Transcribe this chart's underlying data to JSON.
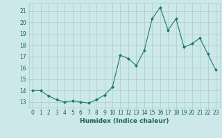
{
  "x": [
    0,
    1,
    2,
    3,
    4,
    5,
    6,
    7,
    8,
    9,
    10,
    11,
    12,
    13,
    14,
    15,
    16,
    17,
    18,
    19,
    20,
    21,
    22,
    23
  ],
  "y": [
    14.0,
    14.0,
    13.5,
    13.2,
    13.0,
    13.1,
    13.0,
    12.9,
    13.2,
    13.6,
    14.3,
    17.1,
    16.8,
    16.2,
    17.5,
    20.3,
    21.3,
    19.3,
    20.3,
    17.8,
    18.1,
    18.6,
    17.2,
    15.8
  ],
  "line_color": "#1a7a6a",
  "marker": "D",
  "marker_size": 2,
  "bg_color": "#cce8e8",
  "grid_color": "#aacaca",
  "xlabel": "Humidex (Indice chaleur)",
  "xlim": [
    -0.5,
    23.5
  ],
  "ylim": [
    12.5,
    21.7
  ],
  "yticks": [
    13,
    14,
    15,
    16,
    17,
    18,
    19,
    20,
    21
  ],
  "xticks": [
    0,
    1,
    2,
    3,
    4,
    5,
    6,
    7,
    8,
    9,
    10,
    11,
    12,
    13,
    14,
    15,
    16,
    17,
    18,
    19,
    20,
    21,
    22,
    23
  ],
  "tick_fontsize": 5.5,
  "label_fontsize": 6.5,
  "tick_color": "#1a6060"
}
